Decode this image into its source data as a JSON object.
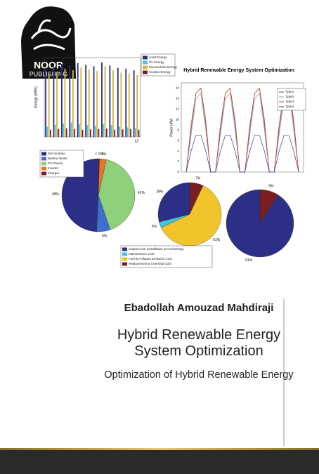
{
  "publisher": {
    "name_top": "NOOR",
    "name_bottom": "PUBLISHING"
  },
  "figures": [
    {
      "type": "bar",
      "y_label": "Energy (kWh)",
      "categories": [
        null,
        null,
        null,
        null,
        null,
        null,
        null,
        null,
        null,
        null,
        null,
        "12"
      ],
      "ylim": [
        0,
        10000
      ],
      "series": [
        {
          "name": "Load Energy",
          "color": "#2b2f86",
          "values": [
            8500,
            8800,
            9200,
            9000,
            9300,
            9100,
            8900,
            9400,
            9000,
            8700,
            8600,
            8400
          ]
        },
        {
          "name": "PV Energy",
          "color": "#4fc3e0",
          "values": [
            1300,
            1500,
            1700,
            1800,
            1600,
            1500,
            1400,
            1600,
            1500,
            1300,
            1200,
            1100
          ]
        },
        {
          "name": "Microturbine Energy",
          "color": "#d9b43a",
          "values": [
            8000,
            8200,
            8600,
            8400,
            8800,
            8500,
            8300,
            8900,
            8400,
            8100,
            8000,
            7800
          ]
        },
        {
          "name": "Surplus Energy",
          "color": "#7a1f1f",
          "values": [
            900,
            1000,
            1100,
            1000,
            900,
            950,
            1000,
            1050,
            900,
            950,
            1000,
            900
          ]
        }
      ]
    },
    {
      "type": "line",
      "title": "Hybrid Renewable Energy System Optimization",
      "y_label": "Power (kW)",
      "x": [
        0,
        1,
        2,
        3,
        4,
        5,
        6,
        7,
        8,
        9,
        10,
        11,
        12,
        13,
        14,
        15,
        16,
        17,
        18,
        19,
        20,
        21,
        22,
        23
      ],
      "xlim": [
        -1,
        24
      ],
      "ylim": [
        0,
        17
      ],
      "yticks": [
        0,
        2,
        4,
        6,
        8,
        10,
        12,
        14,
        16
      ],
      "series": [
        {
          "name": "Type1",
          "color": "#555555",
          "values": [
            0,
            8,
            15,
            16,
            9,
            0,
            0,
            8,
            15,
            16,
            9,
            0,
            0,
            8,
            15,
            16,
            9,
            0,
            0,
            8,
            15,
            16,
            9,
            0
          ]
        },
        {
          "name": "Type2",
          "color": "#999999",
          "values": [
            0,
            7,
            14,
            15,
            8,
            0,
            0,
            7,
            14,
            15,
            8,
            0,
            0,
            7,
            14,
            15,
            8,
            0,
            0,
            7,
            14,
            15,
            8,
            0
          ]
        },
        {
          "name": "Type3",
          "color": "#d23a3a",
          "values": [
            0,
            9,
            15,
            16,
            10,
            0,
            0,
            9,
            15,
            16,
            10,
            0,
            0,
            9,
            15,
            16,
            10,
            0,
            0,
            9,
            15,
            16,
            10,
            0
          ]
        },
        {
          "name": "Type4",
          "color": "#2b3c9a",
          "values": [
            0,
            4,
            7,
            7,
            4,
            0,
            0,
            4,
            7,
            7,
            4,
            0,
            0,
            4,
            7,
            7,
            4,
            0,
            0,
            4,
            7,
            7,
            4,
            0
          ]
        }
      ]
    },
    {
      "type": "pie",
      "labels": [
        "Microturbine",
        "Battery banks",
        "PV Panels",
        "Inverter",
        "Charger"
      ],
      "colors": [
        "#2b2f86",
        "#3c6fd0",
        "#8fd07a",
        "#e8732a",
        "#7a1f1f"
      ],
      "values": [
        49,
        6,
        41,
        3,
        0.5
      ],
      "value_labels": [
        "49%",
        "6%",
        "41%",
        "3%",
        "< 1%"
      ]
    },
    {
      "type": "pie",
      "labels": [
        "Capital Cost (Installation & Purchasing)",
        "Maintenance Cost",
        "Fuel & Pollutant Emission Cost",
        "Replacement & Overhaul Cost"
      ],
      "colors": [
        "#2b2f86",
        "#3ec6e0",
        "#f0c42a",
        "#7a1f1f"
      ],
      "values": [
        29,
        3,
        61,
        7
      ],
      "value_labels": [
        "29%",
        "3%",
        "61%",
        "7%"
      ]
    },
    {
      "type": "pie",
      "colors": [
        "#2b2f86",
        "#7a1f1f"
      ],
      "values": [
        91,
        9
      ],
      "value_labels": [
        "91%",
        "9%"
      ]
    }
  ],
  "author": "Ebadollah Amouzad Mahdiraji",
  "title": "Hybrid Renewable Energy System Optimization",
  "subtitle": "Optimization of Hybrid Renewable Energy"
}
